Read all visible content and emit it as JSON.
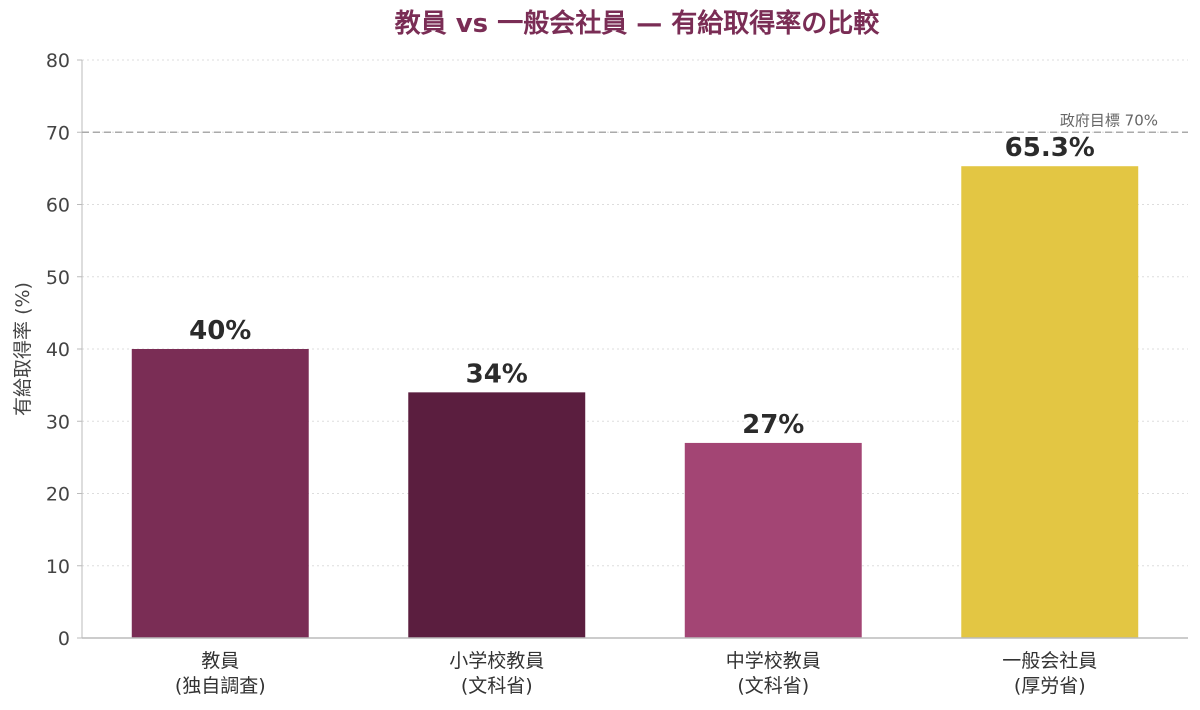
{
  "chart_data": {
    "type": "bar",
    "title": "教員 vs 一般会社員 — 有給取得率の比較",
    "ylabel": "有給取得率 (%)",
    "xlabel": "",
    "ylim": [
      0,
      80
    ],
    "yticks": [
      0,
      10,
      20,
      30,
      40,
      50,
      60,
      70,
      80
    ],
    "grid": true,
    "categories": [
      [
        "教員",
        "(独自調査)"
      ],
      [
        "小学校教員",
        "(文科省)"
      ],
      [
        "中学校教員",
        "(文科省)"
      ],
      [
        "一般会社員",
        "(厚労省)"
      ]
    ],
    "values": [
      40,
      34,
      27,
      65.3
    ],
    "value_labels": [
      "40%",
      "34%",
      "27%",
      "65.3%"
    ],
    "colors": [
      "#7a2d55",
      "#5b1e3f",
      "#a34574",
      "#e3c643"
    ],
    "reference_line": {
      "value": 70,
      "label": "政府目標 70%"
    },
    "title_color": "#7a2d55"
  }
}
